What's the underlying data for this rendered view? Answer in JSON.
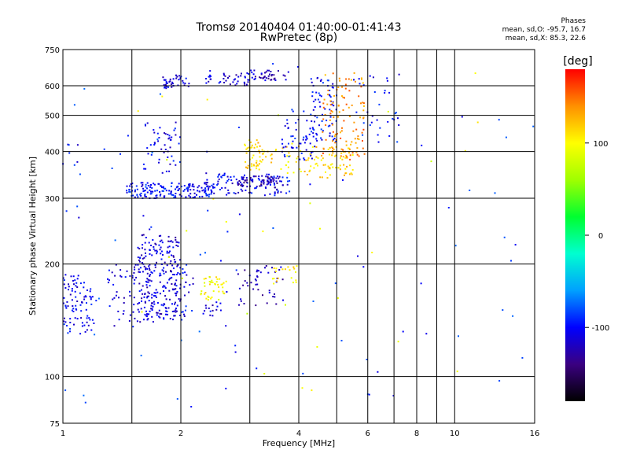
{
  "header": {
    "title_line1": "Tromsø 20140404 01:40:00-01:41:43",
    "title_line2": "RwPretec (8p)"
  },
  "stats": {
    "heading": "Phases",
    "o_line": "mean, sd,O: -95.7, 16.7",
    "x_line": "mean, sd,X:  85.3, 22.6"
  },
  "colorbar": {
    "unit_label": "[deg]",
    "tick_labels": [
      "100",
      "0",
      "-100"
    ],
    "tick_values": [
      100,
      0,
      -100
    ],
    "range": [
      -180,
      180
    ],
    "colormap": [
      "#000000",
      "#3a0080",
      "#0000ff",
      "#00a0ff",
      "#00ffd0",
      "#00ff30",
      "#a0ff00",
      "#ffff00",
      "#ff9000",
      "#ff0000"
    ]
  },
  "chart_data": {
    "type": "scatter",
    "title": "Tromsø 20140404 01:40:00-01:41:43",
    "subtitle": "RwPretec (8p)",
    "xlabel": "Frequency [MHz]",
    "ylabel": "Stationary phase Virtual Height [km]",
    "x_scale": "log",
    "y_scale": "log",
    "xlim": [
      1,
      16
    ],
    "ylim": [
      75,
      750
    ],
    "x_ticks": [
      1,
      2,
      4,
      6,
      8,
      10,
      16
    ],
    "x_tick_labels": [
      "1",
      "2",
      "4",
      "6",
      "8",
      "10",
      "16"
    ],
    "x_grid": [
      1.5,
      2,
      3,
      4,
      5,
      6,
      7,
      8,
      9,
      10
    ],
    "y_ticks": [
      75,
      100,
      200,
      300,
      400,
      500,
      600,
      750
    ],
    "y_tick_labels": [
      "75",
      "100",
      "200",
      "300",
      "400",
      "500",
      "600",
      "750"
    ],
    "y_grid": [
      100,
      200,
      300,
      400,
      500,
      600
    ],
    "grid": true,
    "color_scale": "phase [deg]",
    "groups": [
      {
        "x_range": [
          1.0,
          1.2
        ],
        "y_range": [
          130,
          190
        ],
        "phase": -105,
        "count": 90
      },
      {
        "x_range": [
          1.0,
          1.1
        ],
        "y_range": [
          260,
          540
        ],
        "phase": -100,
        "count": 10
      },
      {
        "x_range": [
          1.3,
          1.55
        ],
        "y_range": [
          135,
          200
        ],
        "phase": -110,
        "count": 45
      },
      {
        "x_range": [
          1.55,
          2.0
        ],
        "y_range": [
          140,
          240
        ],
        "phase": -112,
        "count": 260
      },
      {
        "x_range": [
          1.9,
          2.15
        ],
        "y_range": [
          140,
          200
        ],
        "phase": -105,
        "count": 30
      },
      {
        "x_range": [
          2.25,
          2.6
        ],
        "y_range": [
          160,
          185
        ],
        "phase": 100,
        "count": 40
      },
      {
        "x_range": [
          2.25,
          2.55
        ],
        "y_range": [
          145,
          160
        ],
        "phase": -110,
        "count": 15
      },
      {
        "x_range": [
          2.8,
          3.7
        ],
        "y_range": [
          155,
          200
        ],
        "phase": -120,
        "count": 45
      },
      {
        "x_range": [
          3.4,
          4.0
        ],
        "y_range": [
          175,
          200
        ],
        "phase": 110,
        "count": 20
      },
      {
        "x_range": [
          1.45,
          2.4
        ],
        "y_range": [
          300,
          330
        ],
        "phase": -100,
        "count": 170
      },
      {
        "x_range": [
          1.6,
          2.0
        ],
        "y_range": [
          350,
          480
        ],
        "phase": -105,
        "count": 50
      },
      {
        "x_range": [
          2.3,
          3.8
        ],
        "y_range": [
          305,
          350
        ],
        "phase": -105,
        "count": 120
      },
      {
        "x_range": [
          2.8,
          3.6
        ],
        "y_range": [
          320,
          345
        ],
        "phase": -125,
        "count": 50
      },
      {
        "x_range": [
          2.9,
          3.3
        ],
        "y_range": [
          355,
          430
        ],
        "phase": 115,
        "count": 50
      },
      {
        "x_range": [
          3.3,
          4.4
        ],
        "y_range": [
          345,
          420
        ],
        "phase": 110,
        "count": 40
      },
      {
        "x_range": [
          3.6,
          4.4
        ],
        "y_range": [
          380,
          520
        ],
        "phase": -100,
        "count": 55
      },
      {
        "x_range": [
          4.3,
          5.0
        ],
        "y_range": [
          420,
          650
        ],
        "phase": -100,
        "count": 65
      },
      {
        "x_range": [
          4.4,
          5.5
        ],
        "y_range": [
          340,
          420
        ],
        "phase": 115,
        "count": 60
      },
      {
        "x_range": [
          4.6,
          5.9
        ],
        "y_range": [
          380,
          650
        ],
        "phase": 140,
        "count": 110
      },
      {
        "x_range": [
          5.7,
          7.3
        ],
        "y_range": [
          420,
          650
        ],
        "phase": -100,
        "count": 30
      },
      {
        "x_range": [
          1.8,
          2.1
        ],
        "y_range": [
          590,
          640
        ],
        "phase": -110,
        "count": 40
      },
      {
        "x_range": [
          2.3,
          3.0
        ],
        "y_range": [
          600,
          650
        ],
        "phase": -112,
        "count": 40
      },
      {
        "x_range": [
          3.0,
          3.8
        ],
        "y_range": [
          620,
          660
        ],
        "phase": -120,
        "count": 40
      },
      {
        "x_range": [
          1.0,
          16.0
        ],
        "y_range": [
          76,
          700
        ],
        "phase": -90,
        "count": 90
      },
      {
        "x_range": [
          1.5,
          13.0
        ],
        "y_range": [
          90,
          650
        ],
        "phase": 90,
        "count": 30
      }
    ]
  }
}
